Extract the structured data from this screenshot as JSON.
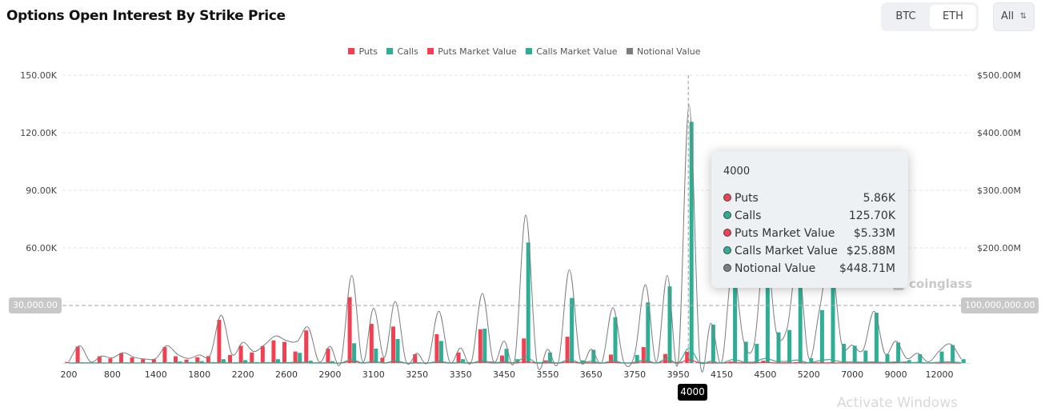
{
  "header": {
    "title": "Options Open Interest By Strike Price"
  },
  "controls": {
    "coins": [
      "BTC",
      "ETH"
    ],
    "selected_coin": "ETH",
    "expiry_select": "All"
  },
  "legend": [
    "Puts",
    "Calls",
    "Puts Market Value",
    "Calls Market Value",
    "Notional Value"
  ],
  "colors": {
    "puts": "#f23f52",
    "calls": "#2eaf95",
    "notional": "#7d7d7d",
    "grid": "#e6e6e6"
  },
  "crosshair": {
    "left_value": "30,000.00",
    "right_value": "100,000,000.00",
    "x_value": "4000"
  },
  "tooltip": {
    "title": "4000",
    "rows": [
      {
        "label": "Puts",
        "value": "5.86K",
        "color": "#f23f52"
      },
      {
        "label": "Calls",
        "value": "125.70K",
        "color": "#2eaf95"
      },
      {
        "label": "Puts Market Value",
        "value": "$5.33M",
        "color": "#f23f52"
      },
      {
        "label": "Calls Market Value",
        "value": "$25.88M",
        "color": "#2eaf95"
      },
      {
        "label": "Notional Value",
        "value": "$448.71M",
        "color": "#7d7d7d"
      }
    ]
  },
  "watermark": "coinglass",
  "os_watermark": "Activate Windows",
  "chart_data": {
    "type": "bar",
    "title": "Options Open Interest By Strike Price",
    "y_left": {
      "ticks": [
        "150.00K",
        "120.00K",
        "90.00K",
        "60.00K"
      ],
      "range": [
        0,
        150
      ],
      "unit": "K"
    },
    "y_right": {
      "ticks": [
        "$500.00M",
        "$400.00M",
        "$300.00M",
        "$200.00M"
      ],
      "range": [
        0,
        500
      ],
      "unit": "M USD"
    },
    "x_tick_labels": [
      "200",
      "800",
      "1400",
      "1800",
      "2200",
      "2600",
      "2900",
      "3100",
      "3250",
      "3350",
      "3450",
      "3550",
      "3650",
      "3750",
      "3950",
      "4150",
      "4500",
      "5200",
      "7000",
      "9000",
      "12000"
    ],
    "grid": true,
    "legend_position": "top",
    "categories": [
      "200",
      "300",
      "400",
      "600",
      "800",
      "900",
      "1000",
      "1200",
      "1400",
      "1500",
      "1600",
      "1700",
      "1800",
      "1900",
      "2000",
      "2100",
      "2200",
      "2300",
      "2400",
      "2500",
      "2600",
      "2700",
      "2750",
      "2800",
      "2900",
      "2950",
      "3000",
      "3050",
      "3100",
      "3150",
      "3200",
      "3225",
      "3250",
      "3275",
      "3300",
      "3325",
      "3350",
      "3375",
      "3400",
      "3425",
      "3450",
      "3475",
      "3500",
      "3525",
      "3550",
      "3575",
      "3600",
      "3625",
      "3650",
      "3675",
      "3700",
      "3725",
      "3750",
      "3800",
      "3850",
      "3900",
      "3950",
      "4000",
      "4050",
      "4100",
      "4150",
      "4200",
      "4300",
      "4400",
      "4500",
      "4600",
      "4800",
      "5000",
      "5200",
      "5500",
      "6000",
      "6500",
      "7000",
      "7500",
      "8000",
      "8500",
      "9000",
      "10000",
      "11000",
      "11500",
      "12000",
      "13000",
      "15000"
    ],
    "series": [
      {
        "name": "Puts",
        "kind": "bar",
        "axis": "left",
        "values": [
          0.5,
          8.6,
          0.3,
          3.5,
          2.4,
          5.1,
          2.9,
          2.0,
          2.0,
          8.3,
          3.5,
          1.8,
          3.0,
          3.6,
          22.5,
          4.2,
          9.0,
          5.5,
          8.8,
          11.8,
          11.0,
          6.0,
          17.0,
          0.3,
          7.5,
          0.2,
          34.3,
          0.3,
          20.4,
          2.8,
          19.0,
          0.3,
          4.6,
          0.3,
          15.0,
          0.3,
          5.5,
          0.5,
          17.6,
          0.8,
          3.9,
          0.3,
          12.8,
          0.2,
          1.4,
          0.2,
          13.7,
          0.2,
          0.3,
          0.2,
          4.4,
          0.2,
          0.3,
          8.3,
          0.3,
          4.7,
          0.5,
          5.86,
          0.3,
          0.3,
          0.2,
          0.8,
          0.3,
          0.3,
          1.2,
          0.3,
          0.3,
          0.5,
          0.2,
          0.3,
          0.3,
          0.2,
          0.2,
          0.2,
          0.3,
          0.2,
          0.5,
          0.8,
          0.5,
          0.2,
          0.2,
          0.2,
          0.1
        ]
      },
      {
        "name": "Calls",
        "kind": "bar",
        "axis": "left",
        "values": [
          0.2,
          0.3,
          0.2,
          0.2,
          0.2,
          0.3,
          0.2,
          0.2,
          0.3,
          0.5,
          0.8,
          0.5,
          1.0,
          0.5,
          2.0,
          0.3,
          1.5,
          0.5,
          0.5,
          2.0,
          0.5,
          5.3,
          1.2,
          0.2,
          1.0,
          0.2,
          10.3,
          0.2,
          7.5,
          0.2,
          12.5,
          0.2,
          0.3,
          0.2,
          11.5,
          0.2,
          2.0,
          0.2,
          17.9,
          0.5,
          7.4,
          2.0,
          62.8,
          0.5,
          5.5,
          0.3,
          33.9,
          1.4,
          6.9,
          0.3,
          23.9,
          0.3,
          4.2,
          31.6,
          0.3,
          39.9,
          0.5,
          125.7,
          0.5,
          20.0,
          0.3,
          48.0,
          11.1,
          10.0,
          60.0,
          16.0,
          17.2,
          52.0,
          2.5,
          27.6,
          55.0,
          10.0,
          9.0,
          6.5,
          26.2,
          4.6,
          10.7,
          1.5,
          4.6,
          0.3,
          6.0,
          9.4,
          2.0
        ]
      },
      {
        "name": "Puts Market Value",
        "kind": "line",
        "axis": "right",
        "values": [
          0.1,
          0.2,
          0.1,
          0.1,
          0.1,
          0.2,
          0.1,
          0.1,
          0.1,
          0.2,
          0.1,
          0.1,
          0.1,
          0.1,
          0.3,
          0.1,
          0.2,
          0.1,
          0.2,
          0.3,
          0.3,
          0.3,
          0.5,
          0.1,
          0.5,
          0.1,
          3,
          0.1,
          2,
          0.2,
          2,
          0.1,
          0.5,
          0.1,
          1.5,
          0.1,
          0.6,
          0.1,
          2,
          0.1,
          0.6,
          0.1,
          2,
          0.1,
          0.4,
          0.1,
          2,
          0.1,
          0.2,
          0.1,
          1,
          0.1,
          0.1,
          2,
          0.1,
          3,
          0.2,
          5.33,
          0.1,
          0.2,
          0.1,
          0.5,
          0.2,
          0.2,
          1,
          0.2,
          0.2,
          0.3,
          0.1,
          0.2,
          0.2,
          0.1,
          0.1,
          0.1,
          0.2,
          0.1,
          0.4,
          0.6,
          0.4,
          0.1,
          0.1,
          0.1,
          0.1
        ]
      },
      {
        "name": "Calls Market Value",
        "kind": "line",
        "axis": "right",
        "values": [
          0.1,
          0.1,
          0.1,
          0.1,
          0.1,
          0.1,
          0.1,
          0.1,
          0.1,
          0.2,
          0.3,
          0.2,
          0.4,
          0.2,
          0.8,
          0.1,
          0.6,
          0.2,
          0.2,
          0.8,
          0.2,
          2,
          0.5,
          0.1,
          0.4,
          0.1,
          6,
          0.1,
          3,
          0.1,
          4,
          0.1,
          0.2,
          0.1,
          3,
          0.1,
          0.8,
          0.1,
          4,
          0.2,
          2.5,
          0.8,
          10,
          0.2,
          2.5,
          0.1,
          6,
          0.6,
          3,
          0.1,
          4,
          0.1,
          1.5,
          5,
          0.1,
          8,
          0.2,
          25.88,
          0.2,
          3,
          0.1,
          6,
          2,
          2,
          8,
          3,
          3,
          5,
          0.5,
          4,
          6,
          2,
          2,
          1.5,
          2,
          1,
          2,
          0.4,
          1,
          0.1,
          1.5,
          2,
          0.5
        ]
      },
      {
        "name": "Notional Value",
        "kind": "line",
        "axis": "right",
        "values": [
          2,
          30,
          2,
          12,
          9,
          18,
          10,
          7,
          8,
          30,
          15,
          8,
          14,
          14,
          83,
          15,
          36,
          20,
          32,
          47,
          39,
          38,
          62,
          2,
          29,
          1,
          152,
          2,
          95,
          10,
          107,
          2,
          17,
          2,
          90,
          2,
          26,
          2,
          121,
          4,
          38,
          8,
          257,
          2,
          24,
          2,
          162,
          5,
          24,
          2,
          96,
          2,
          15,
          136,
          2,
          152,
          3,
          448.71,
          3,
          69,
          2,
          166,
          39,
          35,
          208,
          55,
          60,
          179,
          9,
          95,
          188,
          35,
          31,
          23,
          90,
          16,
          38,
          8,
          17,
          2,
          21,
          33,
          7
        ]
      }
    ],
    "highlighted_category": "4000"
  }
}
